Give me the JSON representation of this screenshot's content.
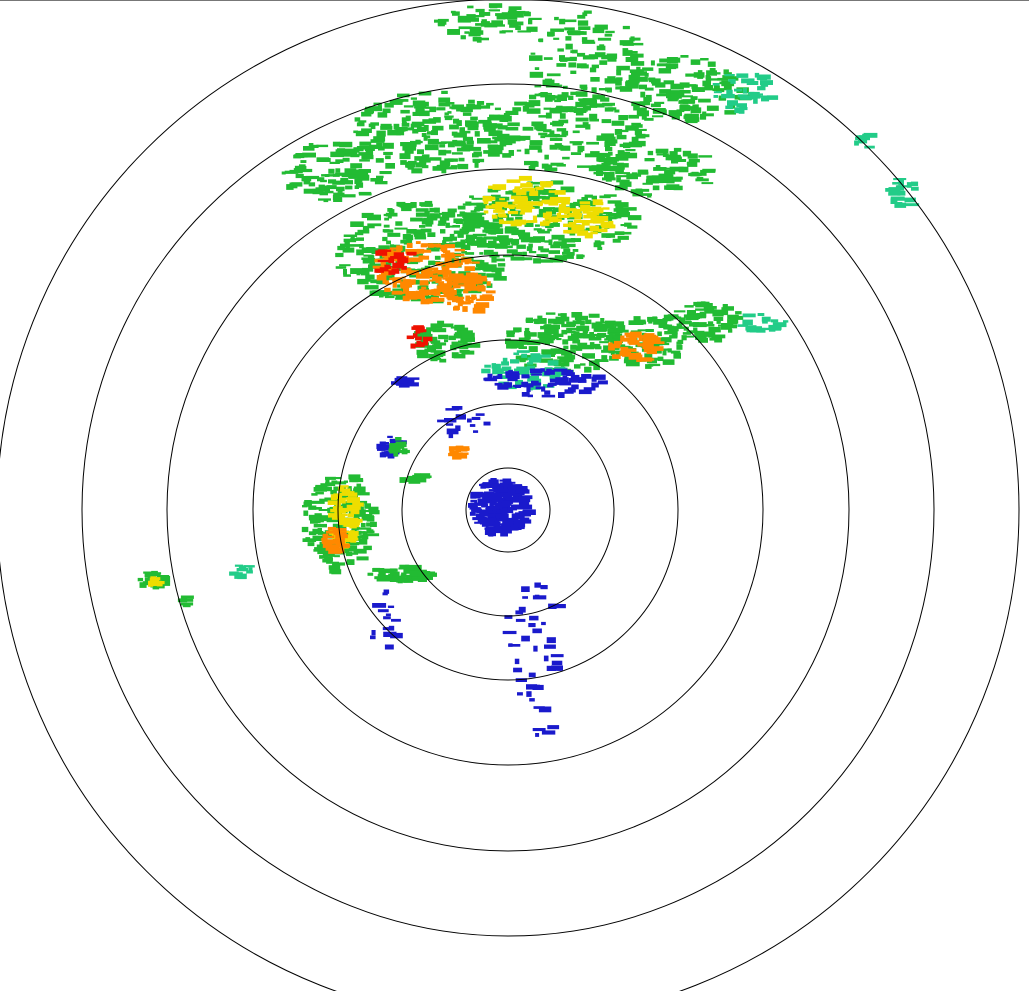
{
  "radar": {
    "range_ring_count": 7,
    "colors": {
      "ring": "#000000",
      "weak": "#1a1acc",
      "light": "#22cc88",
      "moderate": "#22bb33",
      "strong": "#eedd00",
      "heavy": "#ff8800",
      "intense": "#ee1100"
    }
  }
}
